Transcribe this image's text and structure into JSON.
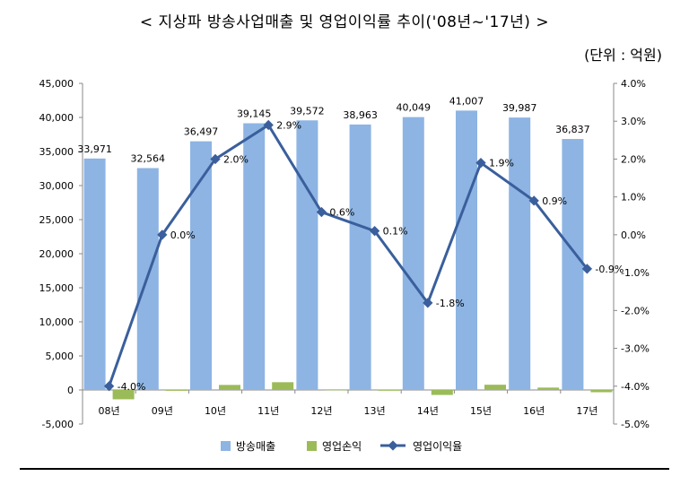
{
  "title": "< 지상파 방송사업매출 및 영업이익률 추이('08년~'17년) >",
  "unit": "(단위 : 억원)",
  "chart_data": {
    "type": "bar",
    "categories": [
      "08년",
      "09년",
      "10년",
      "11년",
      "12년",
      "13년",
      "14년",
      "15년",
      "16년",
      "17년"
    ],
    "series": [
      {
        "name": "방송매출",
        "type": "bar",
        "axis": "left",
        "color": "#8db4e3",
        "values": [
          33971,
          32564,
          36497,
          39145,
          39572,
          38963,
          40049,
          41007,
          39987,
          36837
        ],
        "labels": [
          "33,971",
          "32,564",
          "36,497",
          "39,145",
          "39,572",
          "38,963",
          "40,049",
          "41,007",
          "39,987",
          "36,837"
        ]
      },
      {
        "name": "영업손익",
        "type": "bar",
        "axis": "left",
        "color": "#9bbb59",
        "values": [
          -1370,
          10,
          740,
          1140,
          90,
          20,
          -730,
          770,
          350,
          -330
        ]
      },
      {
        "name": "영업이익율",
        "type": "line",
        "axis": "right",
        "color": "#3a5f9c",
        "values": [
          -4.0,
          0.0,
          2.0,
          2.9,
          0.6,
          0.1,
          -1.8,
          1.9,
          0.9,
          -0.9
        ],
        "labels": [
          "-4.0%",
          "0.0%",
          "2.0%",
          "2.9%",
          "0.6%",
          "0.1%",
          "-1.8%",
          "1.9%",
          "0.9%",
          "-0.9%"
        ]
      }
    ],
    "y_left": {
      "min": -5000,
      "max": 45000,
      "step": 5000,
      "ticks": [
        "-5,000",
        "0",
        "5,000",
        "10,000",
        "15,000",
        "20,000",
        "25,000",
        "30,000",
        "35,000",
        "40,000",
        "45,000"
      ]
    },
    "y_right": {
      "min": -5.0,
      "max": 4.0,
      "step": 1.0,
      "ticks": [
        "-5.0%",
        "-4.0%",
        "-3.0%",
        "-2.0%",
        "-1.0%",
        "0.0%",
        "1.0%",
        "2.0%",
        "3.0%",
        "4.0%"
      ]
    },
    "grid": false,
    "legend_position": "bottom"
  }
}
